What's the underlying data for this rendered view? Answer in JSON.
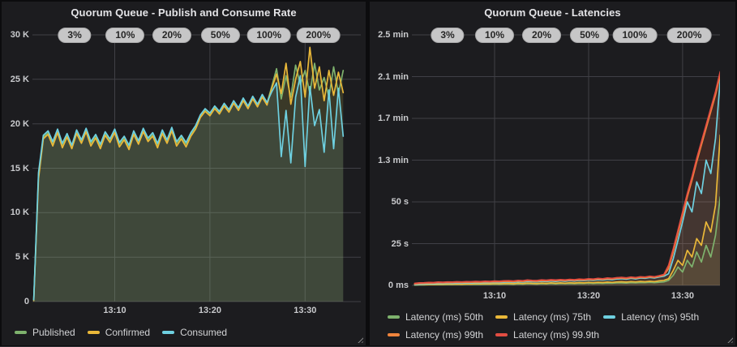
{
  "colors": {
    "green": "#7EB26D",
    "yellow": "#EAB839",
    "cyan": "#6ED0E0",
    "orange": "#EF843C",
    "red": "#E24D42",
    "panel_bg": "#1c1c1f",
    "grid": "#404046",
    "badge_bg": "#c6c6c7"
  },
  "chart_data": [
    {
      "type": "area",
      "title": "Quorum Queue - Publish and Consume Rate",
      "unit": "K msg/s",
      "ylim": [
        0,
        30
      ],
      "t_range": [
        1.36,
        35.85
      ],
      "y_ticks": [
        {
          "label": "30 K",
          "value": 30
        },
        {
          "label": "25 K",
          "value": 25
        },
        {
          "label": "20 K",
          "value": 20
        },
        {
          "label": "15 K",
          "value": 15
        },
        {
          "label": "10 K",
          "value": 10
        },
        {
          "label": "5 K",
          "value": 5
        },
        {
          "label": "0",
          "value": 0
        }
      ],
      "x_ticks": [
        {
          "label": "13:10",
          "t": 10
        },
        {
          "label": "13:20",
          "t": 20
        },
        {
          "label": "13:30",
          "t": 30
        }
      ],
      "annotations": [
        {
          "label": "3%",
          "t": 5.8
        },
        {
          "label": "10%",
          "t": 11.1
        },
        {
          "label": "20%",
          "t": 16.0
        },
        {
          "label": "50%",
          "t": 21.1
        },
        {
          "label": "100%",
          "t": 26.2
        },
        {
          "label": "200%",
          "t": 31.4
        }
      ],
      "legend_position": "bottom",
      "series": [
        {
          "name": "Published",
          "color": "#7EB26D",
          "t0": 1.5,
          "dt": 0.5,
          "values": [
            0.15,
            14.2,
            18.5,
            19.0,
            17.8,
            19.2,
            17.6,
            18.7,
            17.4,
            19.1,
            18.0,
            19.3,
            17.8,
            18.6,
            17.5,
            18.9,
            18.1,
            19.2,
            17.7,
            18.4,
            17.4,
            19.0,
            17.9,
            19.3,
            18.2,
            18.8,
            17.6,
            19.1,
            18.0,
            19.4,
            17.8,
            18.5,
            17.7,
            18.8,
            19.6,
            20.9,
            21.6,
            21.1,
            21.9,
            21.3,
            22.2,
            21.5,
            22.5,
            21.7,
            22.8,
            21.9,
            23.0,
            22.1,
            23.2,
            22.3,
            24.2,
            26.2,
            22.8,
            25.4,
            23.0,
            26.6,
            24.4,
            26.0,
            23.4,
            26.8,
            23.8,
            25.2,
            23.0,
            26.4,
            23.4,
            26.0
          ]
        },
        {
          "name": "Confirmed",
          "color": "#EAB839",
          "t0": 1.5,
          "dt": 0.5,
          "values": [
            0.1,
            13.8,
            18.3,
            18.8,
            17.5,
            19.0,
            17.3,
            18.5,
            17.2,
            18.9,
            17.8,
            19.1,
            17.5,
            18.4,
            17.2,
            18.7,
            17.9,
            19.0,
            17.4,
            18.2,
            17.1,
            18.8,
            17.7,
            19.1,
            18.0,
            18.6,
            17.3,
            18.9,
            17.8,
            19.2,
            17.5,
            18.3,
            17.4,
            18.6,
            19.4,
            20.7,
            21.4,
            20.9,
            21.7,
            21.1,
            22.0,
            21.3,
            22.3,
            21.5,
            22.6,
            21.7,
            22.8,
            21.9,
            23.0,
            22.1,
            24.0,
            25.6,
            23.4,
            26.8,
            22.2,
            25.0,
            27.0,
            23.0,
            28.6,
            24.0,
            26.4,
            22.6,
            26.0,
            23.2,
            25.8,
            23.5
          ]
        },
        {
          "name": "Consumed",
          "color": "#6ED0E0",
          "t0": 1.5,
          "dt": 0.5,
          "values": [
            0.2,
            14.5,
            18.7,
            19.2,
            18.0,
            19.4,
            17.8,
            18.9,
            17.6,
            19.3,
            18.2,
            19.5,
            18.0,
            18.8,
            17.7,
            19.1,
            18.3,
            19.4,
            17.9,
            18.6,
            17.6,
            19.2,
            18.1,
            19.5,
            18.4,
            19.0,
            17.8,
            19.3,
            18.2,
            19.6,
            18.0,
            18.7,
            17.9,
            19.0,
            19.8,
            21.0,
            21.7,
            21.2,
            22.0,
            21.4,
            22.3,
            21.6,
            22.6,
            21.8,
            22.9,
            22.0,
            23.1,
            22.2,
            23.3,
            22.4,
            23.6,
            24.6,
            16.3,
            21.5,
            15.6,
            23.0,
            25.4,
            15.2,
            24.2,
            19.8,
            21.6,
            16.8,
            23.8,
            17.2,
            24.0,
            18.6
          ]
        }
      ]
    },
    {
      "type": "area",
      "title": "Quorum Queue - Latencies",
      "unit": "seconds",
      "ylim": [
        0,
        150
      ],
      "t_range": [
        1.21,
        33.97
      ],
      "y_ticks": [
        {
          "label": "2.5 min",
          "value": 150
        },
        {
          "label": "2.1 min",
          "value": 125
        },
        {
          "label": "1.7 min",
          "value": 100
        },
        {
          "label": "1.3 min",
          "value": 75
        },
        {
          "label": "50 s",
          "value": 50
        },
        {
          "label": "25 s",
          "value": 25
        },
        {
          "label": "0 ms",
          "value": 0
        }
      ],
      "x_ticks": [
        {
          "label": "13:10",
          "t": 10
        },
        {
          "label": "13:20",
          "t": 20
        },
        {
          "label": "13:30",
          "t": 30
        }
      ],
      "annotations": [
        {
          "label": "3%",
          "t": 5.0
        },
        {
          "label": "10%",
          "t": 10.0
        },
        {
          "label": "20%",
          "t": 15.0
        },
        {
          "label": "50%",
          "t": 20.1
        },
        {
          "label": "100%",
          "t": 24.9
        },
        {
          "label": "200%",
          "t": 30.7
        }
      ],
      "legend_position": "bottom",
      "series": [
        {
          "name": "Latency (ms) 50th",
          "color": "#7EB26D",
          "t0": 1.5,
          "dt": 0.5,
          "values": [
            0.2,
            0.3,
            0.3,
            0.4,
            0.4,
            0.5,
            0.4,
            0.5,
            0.5,
            0.6,
            0.5,
            0.6,
            0.6,
            0.7,
            0.6,
            0.7,
            0.7,
            0.8,
            0.7,
            0.8,
            0.8,
            0.7,
            0.9,
            0.8,
            1.0,
            0.9,
            0.8,
            1.0,
            0.9,
            1.1,
            0.9,
            1.1,
            1.0,
            1.1,
            1.0,
            1.2,
            1.1,
            1.3,
            1.1,
            1.3,
            1.2,
            1.4,
            1.3,
            1.5,
            1.5,
            1.4,
            1.6,
            1.5,
            1.7,
            1.6,
            1.8,
            1.6,
            1.9,
            2.1,
            3,
            6,
            11,
            8,
            15,
            11,
            20,
            14,
            24,
            17,
            30,
            53
          ]
        },
        {
          "name": "Latency (ms) 75th",
          "color": "#EAB839",
          "t0": 1.5,
          "dt": 0.5,
          "values": [
            0.3,
            0.4,
            0.5,
            0.6,
            0.5,
            0.7,
            0.6,
            0.8,
            0.7,
            0.8,
            0.7,
            0.9,
            0.8,
            1.0,
            0.9,
            1.0,
            0.9,
            1.1,
            1.0,
            1.1,
            1.2,
            1.0,
            1.3,
            1.1,
            1.4,
            1.2,
            1.1,
            1.4,
            1.2,
            1.5,
            1.3,
            1.5,
            1.3,
            1.6,
            1.4,
            1.7,
            1.5,
            1.8,
            1.6,
            1.9,
            1.7,
            2.0,
            1.8,
            2.1,
            2.2,
            2.0,
            2.3,
            2.1,
            2.4,
            2.2,
            2.5,
            2.3,
            2.7,
            3.0,
            4,
            9,
            15,
            12,
            21,
            17,
            28,
            24,
            38,
            32,
            48,
            90
          ]
        },
        {
          "name": "Latency (ms) 95th",
          "color": "#6ED0E0",
          "t0": 1.5,
          "dt": 0.5,
          "values": [
            0.4,
            0.7,
            0.8,
            1.0,
            0.9,
            1.2,
            1.1,
            1.3,
            1.2,
            1.4,
            1.3,
            1.5,
            1.4,
            1.6,
            1.5,
            1.7,
            1.6,
            1.8,
            1.7,
            1.9,
            2.0,
            1.8,
            2.2,
            2.0,
            2.4,
            2.2,
            2.1,
            2.5,
            2.3,
            2.6,
            2.4,
            2.7,
            2.5,
            2.8,
            2.6,
            3.0,
            2.8,
            3.2,
            3.0,
            3.4,
            3.2,
            3.6,
            3.4,
            3.8,
            4.0,
            3.7,
            4.2,
            3.9,
            4.4,
            4.2,
            4.7,
            4.4,
            5.0,
            5.5,
            7,
            16,
            27,
            38,
            50,
            44,
            62,
            55,
            75,
            67,
            88,
            123
          ]
        },
        {
          "name": "Latency (ms) 99th",
          "color": "#EF843C",
          "t0": 1.5,
          "dt": 0.5,
          "values": [
            0.8,
            1.1,
            1.2,
            1.4,
            1.3,
            1.6,
            1.5,
            1.7,
            1.6,
            1.8,
            1.7,
            1.9,
            1.8,
            2.0,
            1.9,
            2.1,
            2.0,
            2.2,
            2.1,
            2.3,
            2.4,
            2.2,
            2.6,
            2.4,
            2.8,
            2.6,
            2.5,
            2.9,
            2.7,
            3.0,
            2.8,
            3.1,
            2.9,
            3.2,
            3.0,
            3.4,
            3.2,
            3.6,
            3.4,
            3.8,
            3.6,
            4.0,
            3.8,
            4.2,
            4.4,
            4.1,
            4.6,
            4.3,
            4.8,
            4.6,
            5.1,
            4.8,
            5.4,
            6.0,
            10,
            20,
            31,
            42,
            53,
            63,
            74,
            84,
            94,
            104,
            114,
            126
          ]
        },
        {
          "name": "Latency (ms) 99.9th",
          "color": "#E24D42",
          "t0": 1.5,
          "dt": 0.5,
          "values": [
            1.2,
            1.5,
            1.6,
            1.8,
            1.7,
            2.0,
            1.9,
            2.1,
            2.0,
            2.2,
            2.1,
            2.3,
            2.2,
            2.4,
            2.3,
            2.5,
            2.4,
            2.6,
            2.5,
            2.7,
            2.8,
            2.6,
            3.0,
            2.8,
            3.2,
            3.0,
            2.9,
            3.3,
            3.1,
            3.4,
            3.2,
            3.5,
            3.3,
            3.6,
            3.4,
            3.8,
            3.6,
            4.0,
            3.8,
            4.2,
            4.0,
            4.4,
            4.2,
            4.6,
            4.8,
            4.5,
            5.0,
            4.7,
            5.2,
            5.0,
            5.5,
            5.2,
            5.8,
            6.5,
            12,
            22,
            33,
            44,
            55,
            65,
            76,
            86,
            96,
            106,
            116,
            128
          ]
        }
      ]
    }
  ]
}
